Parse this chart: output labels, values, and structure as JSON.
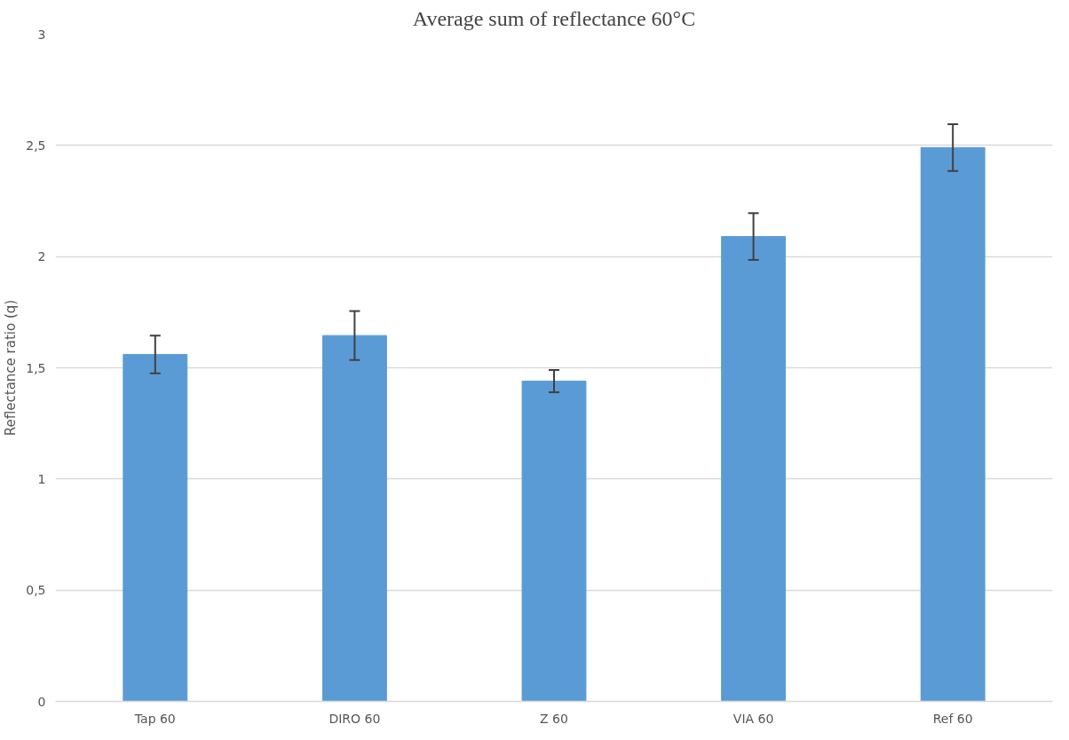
{
  "chart_data": {
    "type": "bar",
    "title": "Average sum of reflectance 60°C",
    "ylabel": "Reflectance ratio (q)",
    "categories": [
      "Tap 60",
      "DIRO 60",
      "Z 60",
      "VIA 60",
      "Ref 60"
    ],
    "values": [
      1.56,
      1.645,
      1.44,
      2.09,
      2.49
    ],
    "errors": [
      0.085,
      0.11,
      0.05,
      0.105,
      0.105
    ],
    "color": "#5b9bd5",
    "ylim": [
      0,
      3
    ],
    "yticks": [
      0,
      {
        "value": 0.5,
        "label": "0,5"
      },
      1,
      {
        "value": 1.5,
        "label": "1,5"
      },
      2,
      {
        "value": 2.5,
        "label": "2,5"
      },
      3
    ],
    "grid": "y"
  }
}
